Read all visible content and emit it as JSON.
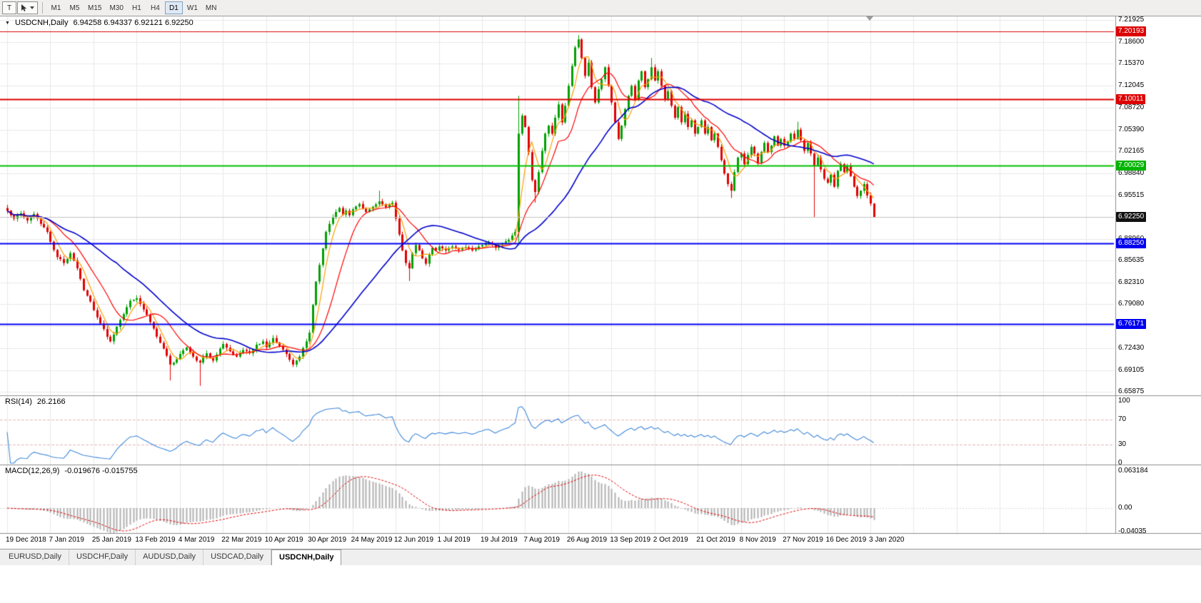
{
  "toolbar": {
    "tools": [
      {
        "name": "text-tool",
        "label": "T"
      },
      {
        "name": "pointer-tool",
        "label": ""
      }
    ],
    "timeframes": [
      "M1",
      "M5",
      "M15",
      "M30",
      "H1",
      "H4",
      "D1",
      "W1",
      "MN"
    ],
    "active_timeframe": "D1"
  },
  "header": {
    "symbol": "USDCNH,Daily",
    "ohlc": "6.94258 6.94337 6.92121 6.92250"
  },
  "indicators": {
    "rsi": {
      "name": "RSI(14)",
      "value": "26.2166",
      "scale": [
        "100",
        "70",
        "30",
        "0"
      ],
      "levels": [
        70,
        30
      ],
      "line_color": "#3f87d9"
    },
    "macd": {
      "name": "MACD(12,26,9)",
      "values": "-0.019676 -0.015755",
      "scale": [
        "0.063184",
        "0.00",
        "-0.04035"
      ],
      "histogram_color": "#b0b0b0",
      "signal_color": "#e00000"
    }
  },
  "price_axis": {
    "labels": [
      "7.21925",
      "7.18600",
      "7.15370",
      "7.12045",
      "7.08720",
      "7.05390",
      "7.02165",
      "6.98840",
      "6.95515",
      "6.92250",
      "6.88960",
      "6.85635",
      "6.82310",
      "6.79080",
      "6.75755",
      "6.72430",
      "6.69105",
      "6.65875"
    ]
  },
  "levels": [
    {
      "name": "resistance-line-7201",
      "label": "7.20193",
      "value": 7.20193,
      "tag_color": "#dd0000",
      "line_color": "#dd0000",
      "line_width": 1
    },
    {
      "name": "resistance-line-7100",
      "label": "7.10011",
      "value": 7.10011,
      "tag_color": "#dd0000",
      "line_color": "#dd0000",
      "line_width": 2
    },
    {
      "name": "level-line-7000",
      "label": "7.00029",
      "value": 7.00029,
      "tag_color": "#00b400",
      "line_color": "#00c000",
      "line_width": 2
    },
    {
      "name": "current-price",
      "label": "6.92250",
      "value": 6.9225,
      "tag_color": "#111111",
      "line_color": "#c0c0c0",
      "line_width": 1
    },
    {
      "name": "support-line-6882",
      "label": "6.88250",
      "value": 6.8825,
      "tag_color": "#0000f0",
      "line_color": "#0000f0",
      "line_width": 2
    },
    {
      "name": "support-line-6761",
      "label": "6.76171",
      "value": 6.76171,
      "tag_color": "#0000f0",
      "line_color": "#0000f0",
      "line_width": 2
    }
  ],
  "x_axis": {
    "labels": [
      "19 Dec 2018",
      "7 Jan 2019",
      "25 Jan 2019",
      "13 Feb 2019",
      "4 Mar 2019",
      "22 Mar 2019",
      "10 Apr 2019",
      "30 Apr 2019",
      "24 May 2019",
      "12 Jun 2019",
      "1 Jul 2019",
      "19 Jul 2019",
      "7 Aug 2019",
      "26 Aug 2019",
      "13 Sep 2019",
      "2 Oct 2019",
      "21 Oct 2019",
      "8 Nov 2019",
      "27 Nov 2019",
      "16 Dec 2019",
      "3 Jan 2020"
    ]
  },
  "tabs": {
    "items": [
      "EURUSD,Daily",
      "USDCHF,Daily",
      "AUDUSD,Daily",
      "USDCAD,Daily",
      "USDCNH,Daily"
    ],
    "active": "USDCNH,Daily"
  },
  "chart_data": {
    "type": "candlestick",
    "title": "USDCNH,Daily",
    "timeframe": "D1",
    "bar_count": 262,
    "bar_index_per_label": 13,
    "price_axis_top": 7.21925,
    "price_axis_bottom": 6.65875,
    "candle_up": "#00a000",
    "candle_down": "#e00000",
    "last_bar": {
      "open": 6.94258,
      "high": 6.94337,
      "low": 6.92121,
      "close": 6.9225
    },
    "moving_averages": [
      {
        "name": "ma-fast-orange",
        "period": 5,
        "color": "#ff9d00",
        "width": 1.2
      },
      {
        "name": "ma-mid-red",
        "period": 13,
        "color": "#ff0000",
        "width": 1.2
      },
      {
        "name": "ma-slow-blue",
        "period": 34,
        "color": "#0000cc",
        "width": 1.6
      }
    ],
    "close_anchors": [
      [
        0,
        6.932
      ],
      [
        2,
        6.92
      ],
      [
        4,
        6.928
      ],
      [
        6,
        6.917
      ],
      [
        8,
        6.927
      ],
      [
        10,
        6.912
      ],
      [
        12,
        6.9
      ],
      [
        13,
        6.885
      ],
      [
        15,
        6.862
      ],
      [
        17,
        6.853
      ],
      [
        19,
        6.868
      ],
      [
        21,
        6.845
      ],
      [
        23,
        6.812
      ],
      [
        25,
        6.795
      ],
      [
        26,
        6.782
      ],
      [
        28,
        6.762
      ],
      [
        30,
        6.742
      ],
      [
        31,
        6.735
      ],
      [
        33,
        6.757
      ],
      [
        35,
        6.776
      ],
      [
        37,
        6.796
      ],
      [
        39,
        6.8
      ],
      [
        41,
        6.783
      ],
      [
        43,
        6.764
      ],
      [
        45,
        6.742
      ],
      [
        47,
        6.724
      ],
      [
        49,
        6.7
      ],
      [
        51,
        6.708
      ],
      [
        52,
        6.716
      ],
      [
        54,
        6.726
      ],
      [
        56,
        6.712
      ],
      [
        58,
        6.703
      ],
      [
        60,
        6.717
      ],
      [
        62,
        6.706
      ],
      [
        64,
        6.724
      ],
      [
        65,
        6.731
      ],
      [
        67,
        6.72
      ],
      [
        69,
        6.712
      ],
      [
        71,
        6.722
      ],
      [
        73,
        6.717
      ],
      [
        75,
        6.73
      ],
      [
        77,
        6.735
      ],
      [
        78,
        6.726
      ],
      [
        80,
        6.74
      ],
      [
        82,
        6.728
      ],
      [
        84,
        6.716
      ],
      [
        86,
        6.7
      ],
      [
        88,
        6.712
      ],
      [
        90,
        6.735
      ],
      [
        91,
        6.748
      ],
      [
        92,
        6.79
      ],
      [
        93,
        6.825
      ],
      [
        94,
        6.85
      ],
      [
        95,
        6.875
      ],
      [
        96,
        6.9
      ],
      [
        97,
        6.912
      ],
      [
        98,
        6.922
      ],
      [
        99,
        6.93
      ],
      [
        100,
        6.936
      ],
      [
        101,
        6.926
      ],
      [
        102,
        6.932
      ],
      [
        103,
        6.925
      ],
      [
        104,
        6.934
      ],
      [
        106,
        6.942
      ],
      [
        108,
        6.93
      ],
      [
        110,
        6.938
      ],
      [
        112,
        6.946
      ],
      [
        114,
        6.937
      ],
      [
        116,
        6.944
      ],
      [
        117,
        6.92
      ],
      [
        118,
        6.896
      ],
      [
        119,
        6.872
      ],
      [
        120,
        6.853
      ],
      [
        121,
        6.845
      ],
      [
        122,
        6.868
      ],
      [
        123,
        6.88
      ],
      [
        124,
        6.872
      ],
      [
        125,
        6.86
      ],
      [
        126,
        6.852
      ],
      [
        127,
        6.866
      ],
      [
        128,
        6.876
      ],
      [
        129,
        6.872
      ],
      [
        130,
        6.878
      ],
      [
        132,
        6.872
      ],
      [
        134,
        6.878
      ],
      [
        136,
        6.873
      ],
      [
        138,
        6.877
      ],
      [
        140,
        6.872
      ],
      [
        142,
        6.878
      ],
      [
        143,
        6.88
      ],
      [
        145,
        6.884
      ],
      [
        147,
        6.876
      ],
      [
        149,
        6.883
      ],
      [
        151,
        6.888
      ],
      [
        153,
        6.9
      ],
      [
        154,
        7.048
      ],
      [
        155,
        7.075
      ],
      [
        156,
        7.058
      ],
      [
        157,
        7.02
      ],
      [
        158,
        6.978
      ],
      [
        159,
        6.96
      ],
      [
        160,
        6.99
      ],
      [
        161,
        7.022
      ],
      [
        162,
        7.048
      ],
      [
        163,
        7.06
      ],
      [
        164,
        7.048
      ],
      [
        165,
        7.072
      ],
      [
        166,
        7.092
      ],
      [
        167,
        7.065
      ],
      [
        168,
        7.09
      ],
      [
        169,
        7.12
      ],
      [
        170,
        7.15
      ],
      [
        171,
        7.178
      ],
      [
        172,
        7.19
      ],
      [
        173,
        7.162
      ],
      [
        174,
        7.135
      ],
      [
        175,
        7.155
      ],
      [
        176,
        7.118
      ],
      [
        177,
        7.095
      ],
      [
        178,
        7.115
      ],
      [
        179,
        7.13
      ],
      [
        180,
        7.148
      ],
      [
        181,
        7.12
      ],
      [
        182,
        7.095
      ],
      [
        183,
        7.065
      ],
      [
        184,
        7.04
      ],
      [
        185,
        7.06
      ],
      [
        186,
        7.085
      ],
      [
        187,
        7.105
      ],
      [
        188,
        7.12
      ],
      [
        189,
        7.1
      ],
      [
        190,
        7.128
      ],
      [
        191,
        7.142
      ],
      [
        192,
        7.118
      ],
      [
        193,
        7.13
      ],
      [
        194,
        7.148
      ],
      [
        195,
        7.128
      ],
      [
        196,
        7.142
      ],
      [
        197,
        7.12
      ],
      [
        198,
        7.1
      ],
      [
        199,
        7.112
      ],
      [
        200,
        7.09
      ],
      [
        201,
        7.072
      ],
      [
        202,
        7.088
      ],
      [
        203,
        7.065
      ],
      [
        204,
        7.078
      ],
      [
        205,
        7.058
      ],
      [
        206,
        7.068
      ],
      [
        207,
        7.048
      ],
      [
        208,
        7.058
      ],
      [
        209,
        7.068
      ],
      [
        210,
        7.048
      ],
      [
        211,
        7.058
      ],
      [
        212,
        7.038
      ],
      [
        213,
        7.048
      ],
      [
        214,
        7.028
      ],
      [
        215,
        7.008
      ],
      [
        216,
        6.988
      ],
      [
        217,
        6.972
      ],
      [
        218,
        6.962
      ],
      [
        219,
        6.99
      ],
      [
        220,
        7.012
      ],
      [
        221,
        7.018
      ],
      [
        222,
        7.002
      ],
      [
        223,
        7.016
      ],
      [
        224,
        7.028
      ],
      [
        225,
        7.018
      ],
      [
        226,
        7.004
      ],
      [
        227,
        7.02
      ],
      [
        228,
        7.034
      ],
      [
        229,
        7.02
      ],
      [
        230,
        7.03
      ],
      [
        231,
        7.044
      ],
      [
        232,
        7.03
      ],
      [
        233,
        7.04
      ],
      [
        234,
        7.03
      ],
      [
        235,
        7.036
      ],
      [
        236,
        7.048
      ],
      [
        237,
        7.04
      ],
      [
        238,
        7.054
      ],
      [
        239,
        7.038
      ],
      [
        240,
        7.022
      ],
      [
        241,
        7.034
      ],
      [
        242,
        7.018
      ],
      [
        243,
        7.0
      ],
      [
        244,
        7.012
      ],
      [
        245,
        6.994
      ],
      [
        246,
        6.98
      ],
      [
        247,
        6.974
      ],
      [
        248,
        6.986
      ],
      [
        249,
        6.968
      ],
      [
        250,
        6.992
      ],
      [
        251,
        7.002
      ],
      [
        252,
        6.99
      ],
      [
        253,
        7.0
      ],
      [
        254,
        6.984
      ],
      [
        255,
        6.968
      ],
      [
        256,
        6.954
      ],
      [
        257,
        6.962
      ],
      [
        258,
        6.972
      ],
      [
        259,
        6.955
      ],
      [
        260,
        6.9426
      ],
      [
        261,
        6.9225
      ]
    ],
    "wick_overrides": [
      {
        "i": 49,
        "low": 6.676
      },
      {
        "i": 58,
        "low": 6.668
      },
      {
        "i": 112,
        "high": 6.962
      },
      {
        "i": 121,
        "low": 6.826
      },
      {
        "i": 154,
        "low": 6.883,
        "high": 7.105
      },
      {
        "i": 159,
        "low": 6.944
      },
      {
        "i": 172,
        "high": 7.1965
      },
      {
        "i": 194,
        "high": 7.162
      },
      {
        "i": 218,
        "low": 6.951
      },
      {
        "i": 238,
        "high": 7.066
      },
      {
        "i": 243,
        "low": 6.9221
      }
    ]
  }
}
